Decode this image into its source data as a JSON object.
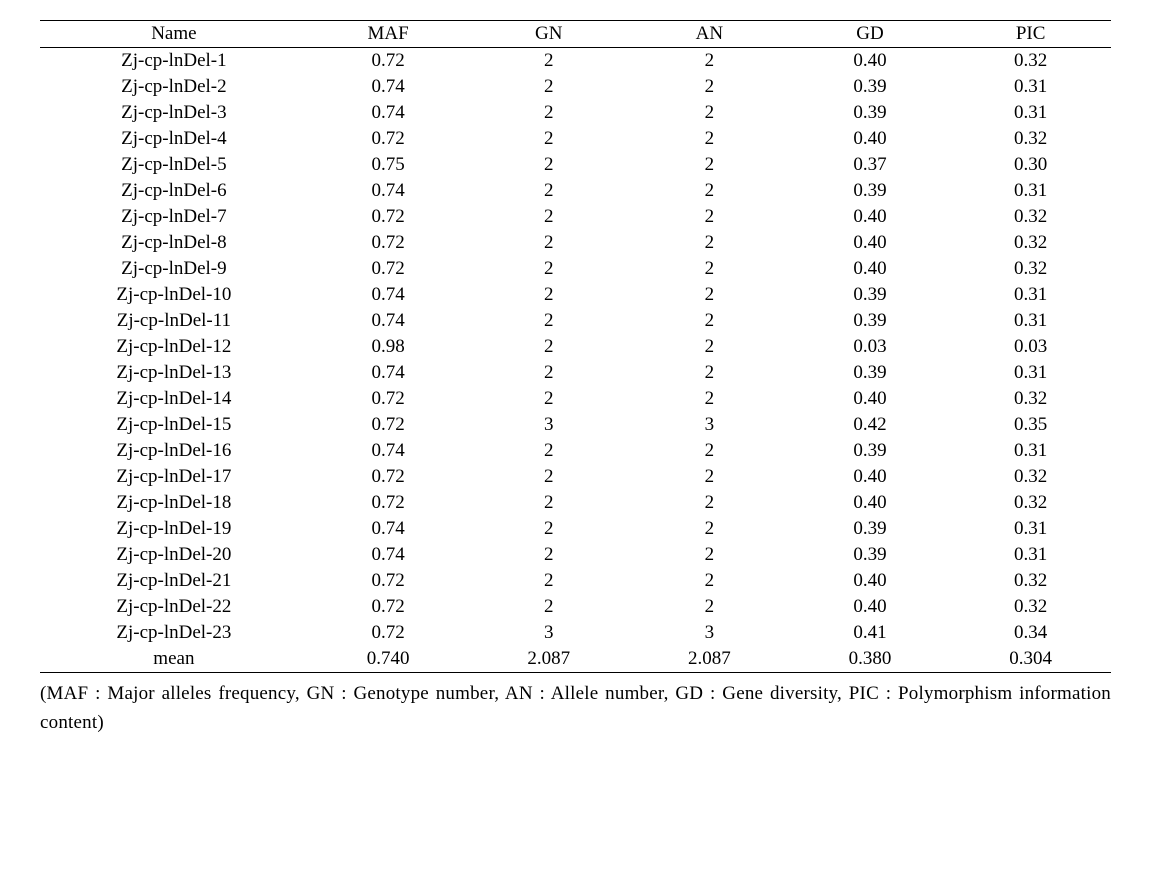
{
  "table": {
    "columns": [
      "Name",
      "MAF",
      "GN",
      "AN",
      "GD",
      "PIC"
    ],
    "rows": [
      [
        "Zj-cp-lnDel-1",
        "0.72",
        "2",
        "2",
        "0.40",
        "0.32"
      ],
      [
        "Zj-cp-lnDel-2",
        "0.74",
        "2",
        "2",
        "0.39",
        "0.31"
      ],
      [
        "Zj-cp-lnDel-3",
        "0.74",
        "2",
        "2",
        "0.39",
        "0.31"
      ],
      [
        "Zj-cp-lnDel-4",
        "0.72",
        "2",
        "2",
        "0.40",
        "0.32"
      ],
      [
        "Zj-cp-lnDel-5",
        "0.75",
        "2",
        "2",
        "0.37",
        "0.30"
      ],
      [
        "Zj-cp-lnDel-6",
        "0.74",
        "2",
        "2",
        "0.39",
        "0.31"
      ],
      [
        "Zj-cp-lnDel-7",
        "0.72",
        "2",
        "2",
        "0.40",
        "0.32"
      ],
      [
        "Zj-cp-lnDel-8",
        "0.72",
        "2",
        "2",
        "0.40",
        "0.32"
      ],
      [
        "Zj-cp-lnDel-9",
        "0.72",
        "2",
        "2",
        "0.40",
        "0.32"
      ],
      [
        "Zj-cp-lnDel-10",
        "0.74",
        "2",
        "2",
        "0.39",
        "0.31"
      ],
      [
        "Zj-cp-lnDel-11",
        "0.74",
        "2",
        "2",
        "0.39",
        "0.31"
      ],
      [
        "Zj-cp-lnDel-12",
        "0.98",
        "2",
        "2",
        "0.03",
        "0.03"
      ],
      [
        "Zj-cp-lnDel-13",
        "0.74",
        "2",
        "2",
        "0.39",
        "0.31"
      ],
      [
        "Zj-cp-lnDel-14",
        "0.72",
        "2",
        "2",
        "0.40",
        "0.32"
      ],
      [
        "Zj-cp-lnDel-15",
        "0.72",
        "3",
        "3",
        "0.42",
        "0.35"
      ],
      [
        "Zj-cp-lnDel-16",
        "0.74",
        "2",
        "2",
        "0.39",
        "0.31"
      ],
      [
        "Zj-cp-lnDel-17",
        "0.72",
        "2",
        "2",
        "0.40",
        "0.32"
      ],
      [
        "Zj-cp-lnDel-18",
        "0.72",
        "2",
        "2",
        "0.40",
        "0.32"
      ],
      [
        "Zj-cp-lnDel-19",
        "0.74",
        "2",
        "2",
        "0.39",
        "0.31"
      ],
      [
        "Zj-cp-lnDel-20",
        "0.74",
        "2",
        "2",
        "0.39",
        "0.31"
      ],
      [
        "Zj-cp-lnDel-21",
        "0.72",
        "2",
        "2",
        "0.40",
        "0.32"
      ],
      [
        "Zj-cp-lnDel-22",
        "0.72",
        "2",
        "2",
        "0.40",
        "0.32"
      ],
      [
        "Zj-cp-lnDel-23",
        "0.72",
        "3",
        "3",
        "0.41",
        "0.34"
      ],
      [
        "mean",
        "0.740",
        "2.087",
        "2.087",
        "0.380",
        "0.304"
      ]
    ]
  },
  "footnote": "(MAF : Major alleles frequency, GN : Genotype number, AN : Allele number, GD : Gene diversity, PIC : Polymorphism information content)"
}
